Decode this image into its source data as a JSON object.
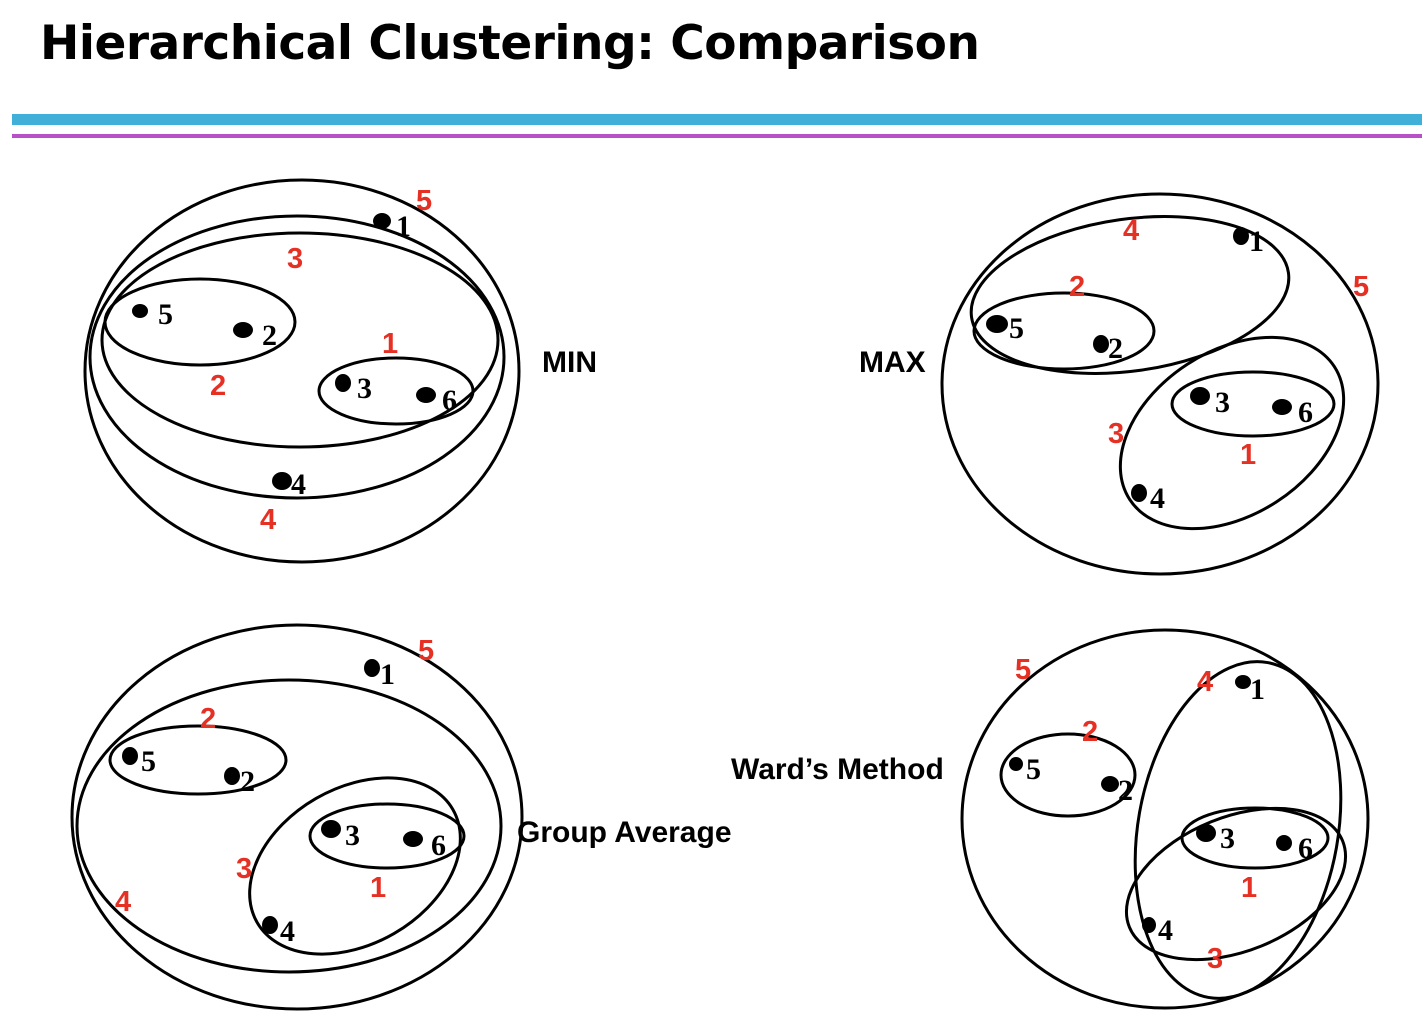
{
  "title": "Hierarchical Clustering: Comparison",
  "colors": {
    "rule_blue": "#40b0d8",
    "rule_purple": "#b850c8",
    "merge_order": "#e53024"
  },
  "panels": [
    {
      "method": "MIN",
      "points": [
        "1",
        "5",
        "2",
        "3",
        "6",
        "4"
      ],
      "merge_order": [
        "1",
        "2",
        "3",
        "4",
        "5"
      ]
    },
    {
      "method": "MAX",
      "points": [
        "1",
        "5",
        "2",
        "3",
        "6",
        "4"
      ],
      "merge_order": [
        "1",
        "2",
        "3",
        "4",
        "5"
      ]
    },
    {
      "method": "Group Average",
      "points": [
        "1",
        "5",
        "2",
        "3",
        "6",
        "4"
      ],
      "merge_order": [
        "1",
        "2",
        "3",
        "4",
        "5"
      ]
    },
    {
      "method": "Ward’s Method",
      "points": [
        "1",
        "5",
        "2",
        "3",
        "6",
        "4"
      ],
      "merge_order": [
        "1",
        "2",
        "3",
        "4",
        "5"
      ]
    }
  ]
}
